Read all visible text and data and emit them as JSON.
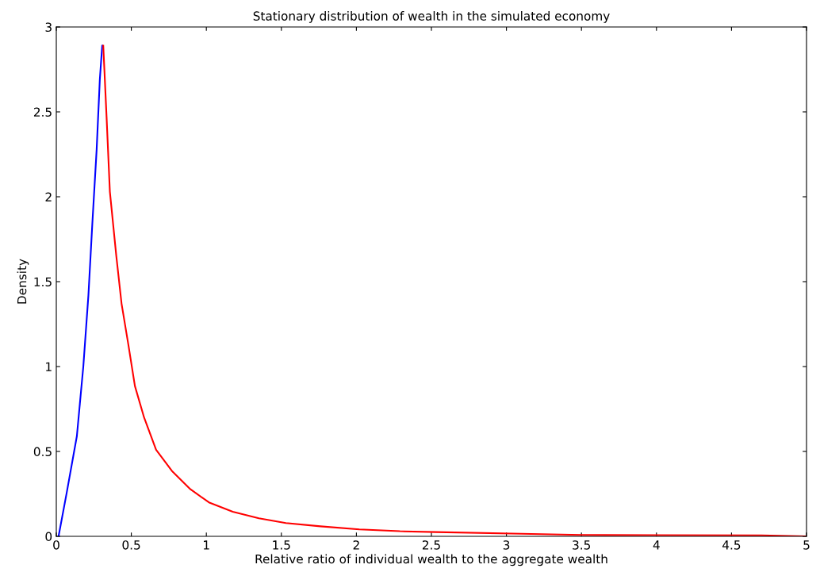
{
  "chart_data": {
    "type": "line",
    "title": "Stationary distribution of wealth in the simulated economy",
    "xlabel": "Relative ratio of individual wealth to the aggregate wealth",
    "ylabel": "Density",
    "series": [
      {
        "color": "#0000ff",
        "x": [
          0.015,
          0.07,
          0.137,
          0.18,
          0.214,
          0.24,
          0.269,
          0.29,
          0.306
        ],
        "values": [
          0,
          0.26,
          0.59,
          1.0,
          1.42,
          1.84,
          2.28,
          2.69,
          2.89
        ]
      },
      {
        "color": "#ff0000",
        "x": [
          0.313,
          0.335,
          0.357,
          0.4,
          0.435,
          0.48,
          0.524,
          0.585,
          0.665,
          0.77,
          0.894,
          1.017,
          1.176,
          1.35,
          1.53,
          1.76,
          2.02,
          2.29,
          2.53,
          3.1,
          3.5,
          4.0,
          4.7,
          5.0
        ],
        "values": [
          2.89,
          2.47,
          2.03,
          1.65,
          1.37,
          1.13,
          0.885,
          0.7,
          0.51,
          0.386,
          0.277,
          0.2,
          0.145,
          0.106,
          0.078,
          0.059,
          0.041,
          0.03,
          0.025,
          0.015,
          0.008,
          0.007,
          0.006,
          0
        ]
      }
    ],
    "xlim": [
      0,
      5
    ],
    "ylim": [
      0,
      3
    ],
    "xticks": [
      0,
      0.5,
      1,
      1.5,
      2,
      2.5,
      3,
      3.5,
      4,
      4.5,
      5
    ],
    "yticks": [
      0,
      0.5,
      1,
      1.5,
      2,
      2.5,
      3
    ],
    "grid": false
  }
}
